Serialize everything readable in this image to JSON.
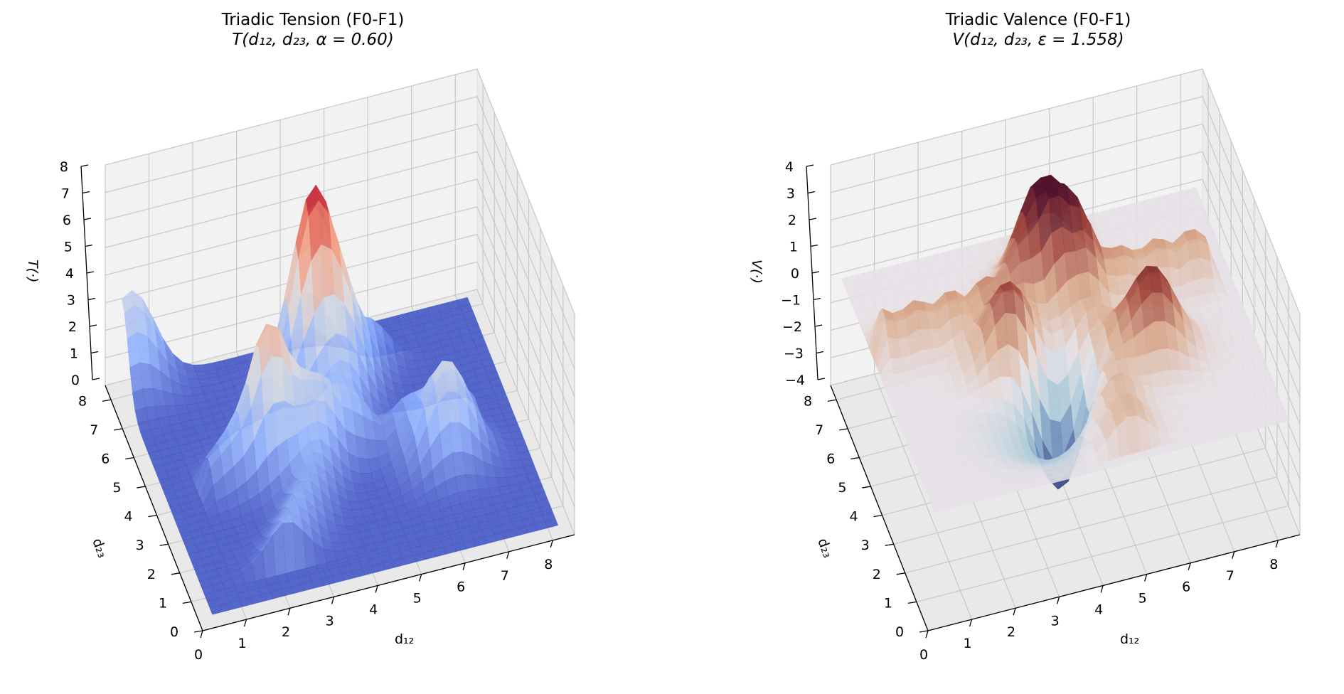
{
  "chart_data": [
    {
      "type": "surface3d",
      "title": "Triadic Tension (F0-F1)",
      "subtitle": "T(d₁₂, d₂₃, α = 0.60)",
      "xlabel": "d₁₂",
      "ylabel": "d₂₃",
      "zlabel": "T(·)",
      "xlim": [
        0,
        8.5
      ],
      "ylim": [
        0,
        8.5
      ],
      "zlim": [
        0,
        8
      ],
      "x_ticks": [
        "0",
        "1",
        "2",
        "3",
        "4",
        "5",
        "6",
        "7",
        "8"
      ],
      "y_ticks": [
        "0",
        "1",
        "2",
        "3",
        "4",
        "5",
        "6",
        "7",
        "8"
      ],
      "z_ticks": [
        "0",
        "1",
        "2",
        "3",
        "4",
        "5",
        "6",
        "7",
        "8"
      ],
      "colormap": "coolwarm",
      "colors": [
        "#3b4cc0",
        "#8db0fe",
        "#dddddd",
        "#f49a7b",
        "#b40426"
      ],
      "peaks": [
        {
          "d12": 4.2,
          "d23": 6.3,
          "T": 7.6
        },
        {
          "d12": 2.7,
          "d23": 4.4,
          "T": 4.3
        },
        {
          "d12": 0.5,
          "d23": 8.2,
          "T": 3.4
        },
        {
          "d12": 6.4,
          "d23": 3.2,
          "T": 3.6
        }
      ]
    },
    {
      "type": "surface3d",
      "title": "Triadic Valence (F0-F1)",
      "subtitle": "V(d₁₂, d₂₃, ε = 1.558)",
      "xlabel": "d₁₂",
      "ylabel": "d₂₃",
      "zlabel": "V(·)",
      "xlim": [
        0,
        8.5
      ],
      "ylim": [
        0,
        8.5
      ],
      "zlim": [
        -4,
        4
      ],
      "x_ticks": [
        "0",
        "1",
        "2",
        "3",
        "4",
        "5",
        "6",
        "7",
        "8"
      ],
      "y_ticks": [
        "0",
        "1",
        "2",
        "3",
        "4",
        "5",
        "6",
        "7",
        "8"
      ],
      "z_ticks": [
        "−4",
        "−3",
        "−2",
        "−1",
        "0",
        "1",
        "2",
        "3",
        "4"
      ],
      "colormap": "twilight_shifted",
      "colors": [
        "#2f1450",
        "#5a7fb5",
        "#a9c9d8",
        "#e6e0e6",
        "#d9a98a",
        "#a0443b",
        "#4a0d2a"
      ],
      "peaks": [
        {
          "d12": 4.2,
          "d23": 6.3,
          "V": 3.6
        },
        {
          "d12": 3.0,
          "d23": 4.3,
          "V": 3.0
        },
        {
          "d12": 6.0,
          "d23": 3.4,
          "V": 3.2
        },
        {
          "d12": 3.9,
          "d23": 3.3,
          "V": -3.7
        }
      ]
    }
  ]
}
